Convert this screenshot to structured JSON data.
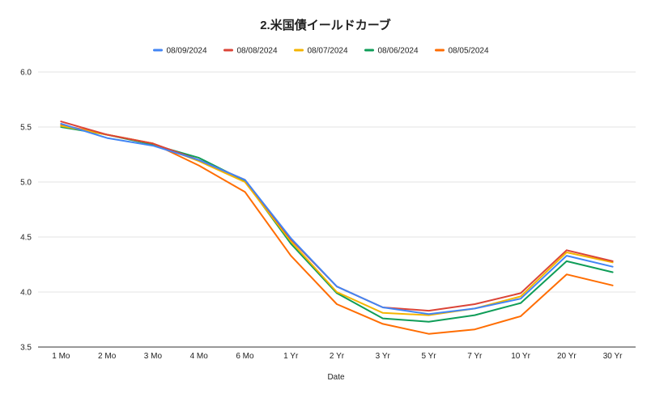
{
  "chart_data": {
    "type": "line",
    "title": "2.米国債イールドカーブ",
    "xlabel": "Date",
    "ylabel": "",
    "ylim": [
      3.5,
      6.0
    ],
    "yticks": [
      "6.0",
      "5.5",
      "5.0",
      "4.5",
      "4.0",
      "3.5"
    ],
    "ytick_values": [
      6.0,
      5.5,
      5.0,
      4.5,
      4.0,
      3.5
    ],
    "grid": true,
    "legend_position": "top",
    "categories": [
      "1 Mo",
      "2 Mo",
      "3 Mo",
      "4 Mo",
      "6 Mo",
      "1 Yr",
      "2 Yr",
      "3 Yr",
      "5 Yr",
      "7 Yr",
      "10 Yr",
      "20 Yr",
      "30 Yr"
    ],
    "series": [
      {
        "name": "08/09/2024",
        "color": "#4285f4",
        "values": [
          5.53,
          5.4,
          5.33,
          5.2,
          5.02,
          4.49,
          4.05,
          3.86,
          3.8,
          3.85,
          3.94,
          4.33,
          4.23
        ]
      },
      {
        "name": "08/08/2024",
        "color": "#db4437",
        "values": [
          5.55,
          5.43,
          5.35,
          5.2,
          5.02,
          4.48,
          4.05,
          3.86,
          3.83,
          3.89,
          3.99,
          4.38,
          4.28
        ]
      },
      {
        "name": "08/07/2024",
        "color": "#f4b400",
        "values": [
          5.51,
          5.43,
          5.35,
          5.19,
          5.0,
          4.46,
          4.0,
          3.81,
          3.79,
          3.85,
          3.96,
          4.36,
          4.27
        ]
      },
      {
        "name": "08/06/2024",
        "color": "#0f9d58",
        "values": [
          5.5,
          5.43,
          5.34,
          5.22,
          5.01,
          4.44,
          3.99,
          3.76,
          3.73,
          3.79,
          3.9,
          4.28,
          4.18
        ]
      },
      {
        "name": "08/05/2024",
        "color": "#ff6d01",
        "values": [
          5.52,
          5.43,
          5.35,
          5.15,
          4.91,
          4.33,
          3.89,
          3.71,
          3.62,
          3.66,
          3.78,
          4.16,
          4.06
        ]
      }
    ]
  }
}
